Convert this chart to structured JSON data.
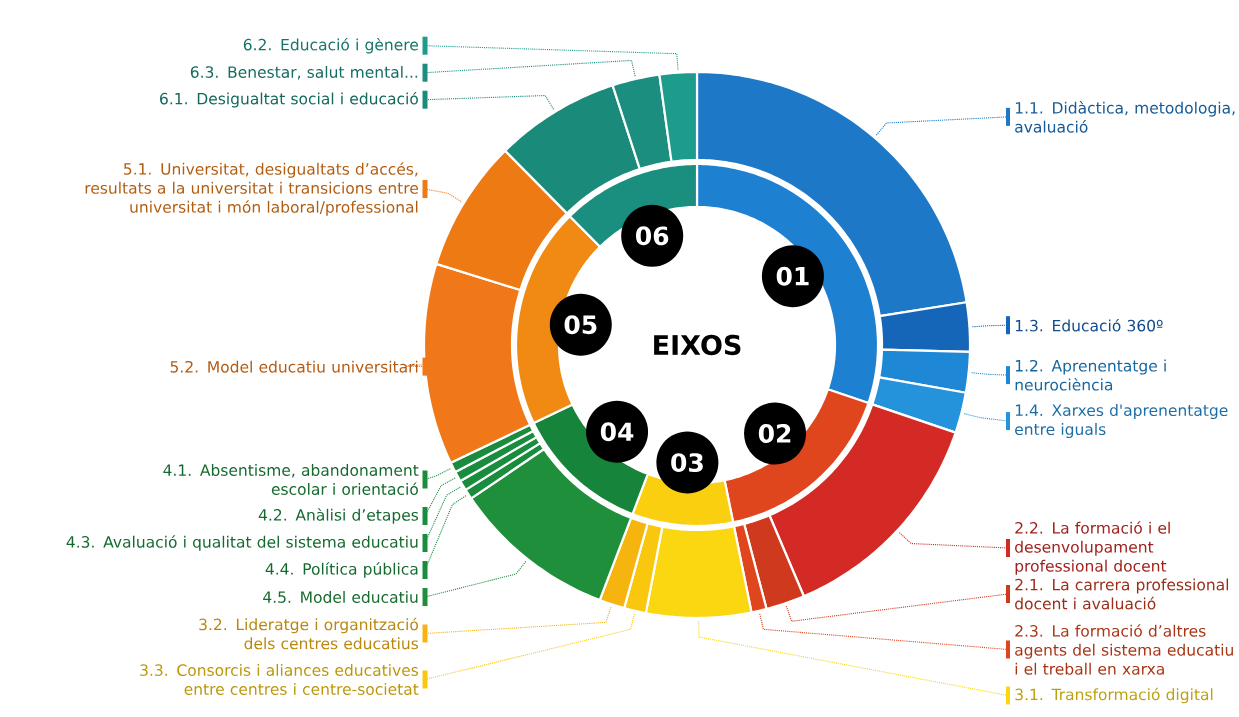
{
  "chart_data": [
    {
      "type": "donut",
      "title": "EIXOS",
      "categories": [
        "01",
        "02",
        "03",
        "04",
        "05",
        "06"
      ],
      "values": [
        30.2,
        16.6,
        9.0,
        12.1,
        19.7,
        12.4
      ],
      "colors": [
        "#1e80d0",
        "#e0461e",
        "#f9cf10",
        "#16843a",
        "#f08a12",
        "#1a8f80"
      ]
    },
    {
      "type": "donut",
      "legend": "left",
      "categories": [
        "1.1. Didàctica, metodologia, avaluació",
        "1.3. Educació 360º",
        "1.2. Aprenentatge i neurociència",
        "1.4. Xarxes d'aprenentatge entre iguals",
        "2.2. La formació i el desenvolupament professional docent",
        "2.1. La carrera professional docent i avaluació",
        "2.3. La formació d’altres agents del sistema educatiu i el treball en xarxa",
        "3.1. Transformació digital",
        "3.3. Consorcis i aliances educatives entre centres i centre-societat",
        "3.2. Lideratge i organització dels centres educatius",
        "4.5. Model educatiu",
        "4.4. Política pública",
        "4.3. Avaluació i qualitat del sistema educatiu",
        "4.2. Anàlisi d’etapes",
        "4.1. Absentisme, abandonament escolar i orientació",
        "5.2. Model educatiu universitari",
        "5.1. Universitat, desigualtats d’accés, resultats a la universitat i transicions entre universitat i món laboral/professional",
        "6.1. Desigualtat social i educació",
        "6.3. Benestar, salut mental...",
        "6.2. Educació i gènere"
      ],
      "values": [
        22.5,
        2.9,
        2.4,
        2.4,
        13.4,
        2.3,
        0.9,
        6.2,
        1.3,
        1.5,
        9.7,
        0.6,
        0.6,
        0.6,
        0.6,
        11.9,
        7.8,
        7.4,
        2.8,
        2.2
      ],
      "colors": [
        "#1d78c8",
        "#1565b8",
        "#1e88d6",
        "#2592dc",
        "#d42a26",
        "#cf3a1f",
        "#e0461e",
        "#fbd712",
        "#f9c80e",
        "#f6b40f",
        "#1f8f3c",
        "#1a8c3e",
        "#1a8c3e",
        "#1a8c3e",
        "#1a8c3e",
        "#f07818",
        "#ee7a14",
        "#1a8a7a",
        "#1b8e80",
        "#1d9c8c"
      ]
    }
  ]
}
